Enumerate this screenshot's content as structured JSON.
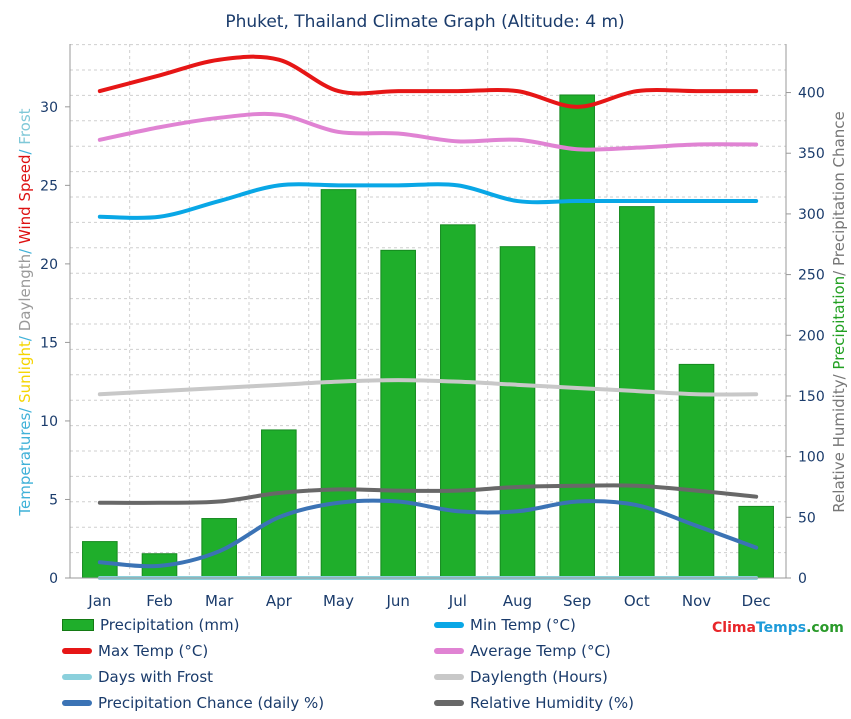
{
  "chart_data": {
    "type": "bar",
    "title": "Phuket, Thailand Climate Graph (Altitude: 4 m)",
    "categories": [
      "Jan",
      "Feb",
      "Mar",
      "Apr",
      "May",
      "Jun",
      "Jul",
      "Aug",
      "Sep",
      "Oct",
      "Nov",
      "Dec"
    ],
    "left_axis": {
      "ylim": [
        0,
        34
      ],
      "ticks": [
        "0",
        "5",
        "10",
        "15",
        "20",
        "25",
        "30"
      ],
      "label_parts": [
        {
          "text": "Temperatures",
          "color": "#3fb1d8"
        },
        {
          "text": "/ ",
          "color": "#3fb1d8"
        },
        {
          "text": "Sunlight",
          "color": "#f5d400"
        },
        {
          "text": "/ ",
          "color": "#3fb1d8"
        },
        {
          "text": "Daylength",
          "color": "#9a9a9a"
        },
        {
          "text": "/ ",
          "color": "#3fb1d8"
        },
        {
          "text": "Wind Speed",
          "color": "#dd1111"
        },
        {
          "text": "/ ",
          "color": "#3fb1d8"
        },
        {
          "text": "Frost",
          "color": "#7fc8d8"
        }
      ]
    },
    "right_axis": {
      "ylim": [
        0,
        440
      ],
      "ticks": [
        "0",
        "50",
        "100",
        "150",
        "200",
        "250",
        "300",
        "350",
        "400"
      ],
      "label_parts": [
        {
          "text": "Relative Humidity",
          "color": "#777777"
        },
        {
          "text": "/ ",
          "color": "#777777"
        },
        {
          "text": "Precipitation",
          "color": "#22a022"
        },
        {
          "text": "/ Precipitation Chance",
          "color": "#777777"
        }
      ]
    },
    "grid": true,
    "legend_position": "bottom",
    "series": [
      {
        "name": "Precipitation (mm)",
        "kind": "bar",
        "axis": "right",
        "color": "#1fae2b",
        "values": [
          30,
          20,
          49,
          122,
          320,
          270,
          291,
          273,
          398,
          306,
          176,
          59
        ]
      },
      {
        "name": "Min Temp (°C)",
        "kind": "line",
        "axis": "left",
        "color": "#09a7e6",
        "values": [
          23,
          23,
          24,
          25,
          25,
          25,
          25,
          24,
          24,
          24,
          24,
          24
        ]
      },
      {
        "name": "Max Temp (°C)",
        "kind": "line",
        "axis": "left",
        "color": "#e61616",
        "values": [
          31,
          32,
          33,
          33,
          31,
          31,
          31,
          31,
          30,
          31,
          31,
          31
        ]
      },
      {
        "name": "Average Temp (°C)",
        "kind": "line",
        "axis": "left",
        "color": "#e083d3",
        "values": [
          27.9,
          28.7,
          29.3,
          29.5,
          28.4,
          28.3,
          27.8,
          27.9,
          27.3,
          27.4,
          27.6,
          27.6
        ]
      },
      {
        "name": "Days with Frost",
        "kind": "line",
        "axis": "left",
        "color": "#8bd0dc",
        "values": [
          0,
          0,
          0,
          0,
          0,
          0,
          0,
          0,
          0,
          0,
          0,
          0
        ]
      },
      {
        "name": "Daylength (Hours)",
        "kind": "line",
        "axis": "left",
        "color": "#c8c8c8",
        "values": [
          11.7,
          11.9,
          12.1,
          12.3,
          12.5,
          12.6,
          12.5,
          12.3,
          12.1,
          11.9,
          11.7,
          11.7
        ]
      },
      {
        "name": "Precipitation Chance (daily %)",
        "kind": "line",
        "axis": "right",
        "color": "#3b73b5",
        "values": [
          13,
          10,
          22,
          50,
          62,
          63,
          55,
          55,
          63,
          60,
          43,
          25
        ]
      },
      {
        "name": "Relative Humidity (%)",
        "kind": "line",
        "axis": "right",
        "color": "#686868",
        "values": [
          62,
          62,
          63,
          70,
          73,
          72,
          72,
          75,
          76,
          76,
          72,
          67
        ]
      }
    ]
  },
  "legend": [
    {
      "label": "Precipitation (mm)",
      "color": "#1fae2b",
      "kind": "bar"
    },
    {
      "label": "Min Temp (°C)",
      "color": "#09a7e6",
      "kind": "line"
    },
    {
      "label": "Max Temp (°C)",
      "color": "#e61616",
      "kind": "line"
    },
    {
      "label": "Average Temp (°C)",
      "color": "#e083d3",
      "kind": "line"
    },
    {
      "label": "Days with Frost",
      "color": "#8bd0dc",
      "kind": "line"
    },
    {
      "label": "Daylength (Hours)",
      "color": "#c8c8c8",
      "kind": "line"
    },
    {
      "label": "Precipitation Chance (daily %)",
      "color": "#3b73b5",
      "kind": "line"
    },
    {
      "label": "Relative Humidity (%)",
      "color": "#686868",
      "kind": "line"
    }
  ],
  "brand": {
    "part1": "Clima",
    "part1_color": "#e8262a",
    "part2": "Temps",
    "part2_color": "#1f9bd9",
    "part3": ".com",
    "part3_color": "#2a9a2a"
  }
}
